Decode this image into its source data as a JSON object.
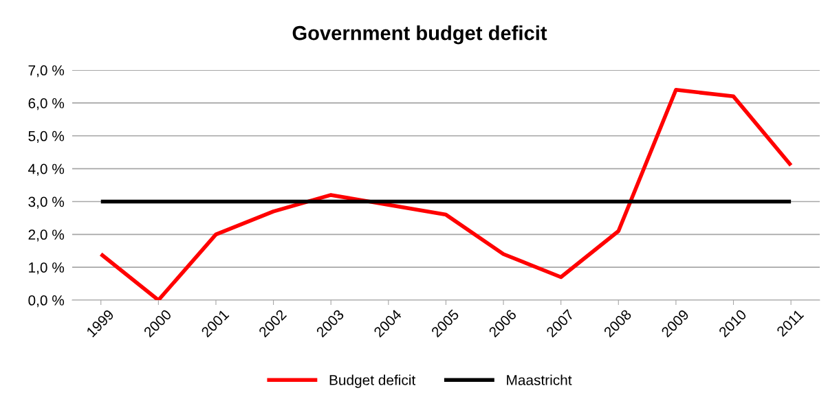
{
  "chart_data": {
    "type": "line",
    "title": "Government budget deficit",
    "categories": [
      "1999",
      "2000",
      "2001",
      "2002",
      "2003",
      "2004",
      "2005",
      "2006",
      "2007",
      "2008",
      "2009",
      "2010",
      "2011"
    ],
    "series": [
      {
        "name": "Budget deficit",
        "color": "#ff0000",
        "values": [
          1.4,
          0.0,
          2.0,
          2.7,
          3.2,
          2.9,
          2.6,
          1.4,
          0.7,
          2.1,
          6.4,
          6.2,
          4.1
        ]
      },
      {
        "name": "Maastricht",
        "color": "#000000",
        "values": [
          3.0,
          3.0,
          3.0,
          3.0,
          3.0,
          3.0,
          3.0,
          3.0,
          3.0,
          3.0,
          3.0,
          3.0,
          3.0
        ]
      }
    ],
    "ylim": [
      0,
      7
    ],
    "yticks": [
      {
        "value": 0,
        "label": "0,0 %"
      },
      {
        "value": 1,
        "label": "1,0 %"
      },
      {
        "value": 2,
        "label": "2,0 %"
      },
      {
        "value": 3,
        "label": "3,0 %"
      },
      {
        "value": 4,
        "label": "4,0 %"
      },
      {
        "value": 5,
        "label": "5,0 %"
      },
      {
        "value": 6,
        "label": "6,0 %"
      },
      {
        "value": 7,
        "label": "7,0 %"
      }
    ],
    "grid": "y",
    "legend": "bottom",
    "marker": "none",
    "line_style": "solid"
  }
}
